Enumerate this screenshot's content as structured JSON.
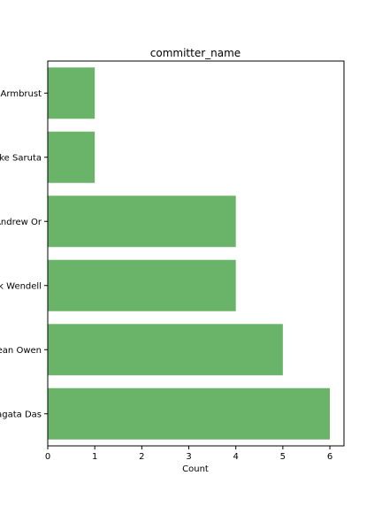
{
  "chart_data": {
    "type": "bar",
    "orientation": "horizontal",
    "title": "committer_name",
    "xlabel": "Count",
    "ylabel": "",
    "categories": [
      "Armbrust",
      "ke Saruta",
      "Andrew Or",
      "k Wendell",
      "ean Owen",
      "agata Das"
    ],
    "values": [
      1,
      1,
      4,
      4,
      5,
      6
    ],
    "xlim": [
      0,
      6.3
    ],
    "xticks": [
      0,
      1,
      2,
      3,
      4,
      5,
      6
    ],
    "grid": false,
    "bar_color": "#6ab469"
  }
}
